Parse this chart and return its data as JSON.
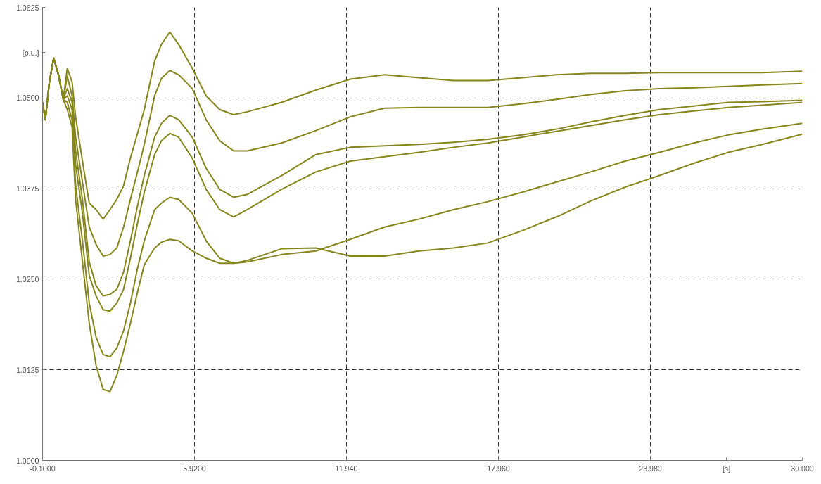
{
  "chart_data": {
    "type": "line",
    "x": [
      -0.1,
      0.01,
      0.17,
      0.34,
      0.53,
      0.72,
      0.88,
      1.07,
      1.21,
      1.48,
      1.75,
      2.02,
      2.3,
      2.57,
      2.84,
      3.11,
      3.38,
      3.66,
      3.93,
      4.34,
      4.61,
      4.94,
      5.29,
      5.83,
      6.38,
      6.92,
      7.47,
      8.01,
      9.37,
      10.73,
      12.09,
      13.45,
      14.82,
      16.18,
      17.54,
      18.9,
      20.26,
      21.62,
      22.98,
      24.34,
      25.7,
      27.06,
      28.42,
      30.0
    ],
    "series": [
      {
        "color": "#86861c",
        "values": [
          1.0494,
          1.047,
          1.0522,
          1.0555,
          1.0532,
          1.0498,
          1.0541,
          1.0522,
          1.0474,
          1.0413,
          1.0355,
          1.0346,
          1.0333,
          1.0346,
          1.036,
          1.0379,
          1.0417,
          1.0451,
          1.0484,
          1.0551,
          1.0574,
          1.0591,
          1.0574,
          1.0541,
          1.0503,
          1.0484,
          1.0477,
          1.0481,
          1.0494,
          1.0511,
          1.0526,
          1.0532,
          1.0528,
          1.0524,
          1.0524,
          1.0528,
          1.0532,
          1.0534,
          1.0534,
          1.0535,
          1.0535,
          1.0535,
          1.0535,
          1.0537
        ]
      },
      {
        "color": "#86861c",
        "values": [
          1.0494,
          1.047,
          1.0522,
          1.0555,
          1.0532,
          1.0498,
          1.053,
          1.0503,
          1.0446,
          1.0384,
          1.0322,
          1.0298,
          1.0282,
          1.0284,
          1.0293,
          1.0322,
          1.036,
          1.0398,
          1.0436,
          1.0503,
          1.0527,
          1.0538,
          1.0532,
          1.0513,
          1.047,
          1.0441,
          1.0427,
          1.0427,
          1.0438,
          1.0455,
          1.0474,
          1.0486,
          1.0487,
          1.0487,
          1.0487,
          1.0492,
          1.0498,
          1.0505,
          1.051,
          1.0513,
          1.0514,
          1.0516,
          1.0518,
          1.052
        ]
      },
      {
        "color": "#86861c",
        "values": [
          1.0494,
          1.047,
          1.0522,
          1.0555,
          1.0532,
          1.0498,
          1.0513,
          1.0494,
          1.0427,
          1.036,
          1.0274,
          1.0241,
          1.0227,
          1.0229,
          1.0236,
          1.026,
          1.0303,
          1.0351,
          1.0393,
          1.0446,
          1.0465,
          1.0476,
          1.047,
          1.0446,
          1.0403,
          1.0374,
          1.0363,
          1.0367,
          1.0393,
          1.0422,
          1.0432,
          1.0434,
          1.0436,
          1.0439,
          1.0443,
          1.0449,
          1.0457,
          1.0467,
          1.0476,
          1.0484,
          1.0489,
          1.0494,
          1.0495,
          1.0497
        ]
      },
      {
        "color": "#86861c",
        "values": [
          1.0494,
          1.047,
          1.0522,
          1.0555,
          1.0532,
          1.0498,
          1.0503,
          1.0484,
          1.0408,
          1.0341,
          1.0255,
          1.0227,
          1.0208,
          1.0206,
          1.0217,
          1.0236,
          1.0279,
          1.0327,
          1.037,
          1.0422,
          1.0441,
          1.0451,
          1.0446,
          1.0417,
          1.0374,
          1.0346,
          1.0336,
          1.0346,
          1.0374,
          1.0398,
          1.0413,
          1.0419,
          1.0425,
          1.0432,
          1.0438,
          1.0446,
          1.0454,
          1.0462,
          1.047,
          1.0477,
          1.0482,
          1.0487,
          1.049,
          1.0494
        ]
      },
      {
        "color": "#86861c",
        "values": [
          1.0494,
          1.047,
          1.0522,
          1.0555,
          1.0532,
          1.0498,
          1.0494,
          1.047,
          1.0379,
          1.0303,
          1.0217,
          1.017,
          1.0146,
          1.0143,
          1.0155,
          1.0179,
          1.0217,
          1.0265,
          1.0303,
          1.0346,
          1.0355,
          1.0363,
          1.036,
          1.0341,
          1.0303,
          1.0279,
          1.0272,
          1.0274,
          1.0284,
          1.0289,
          1.0305,
          1.0322,
          1.0333,
          1.0346,
          1.0357,
          1.037,
          1.0384,
          1.0398,
          1.0413,
          1.0425,
          1.0438,
          1.0449,
          1.0457,
          1.0465
        ]
      },
      {
        "color": "#86861c",
        "values": [
          1.0494,
          1.047,
          1.0522,
          1.0555,
          1.0532,
          1.0498,
          1.0484,
          1.046,
          1.036,
          1.0274,
          1.0189,
          1.0131,
          1.0098,
          1.0095,
          1.0117,
          1.0151,
          1.0189,
          1.0232,
          1.027,
          1.0293,
          1.0301,
          1.0305,
          1.0303,
          1.0289,
          1.0279,
          1.0272,
          1.0272,
          1.0276,
          1.0292,
          1.0293,
          1.0282,
          1.0282,
          1.0289,
          1.0293,
          1.03,
          1.0317,
          1.0336,
          1.0358,
          1.0377,
          1.0393,
          1.041,
          1.0425,
          1.0436,
          1.045
        ]
      }
    ],
    "xlim": [
      -0.1,
      30.0
    ],
    "ylim": [
      1.0,
      1.0625
    ],
    "xticks": [
      {
        "value": -0.1,
        "label": "-0.1000"
      },
      {
        "value": 5.92,
        "label": "5.9200"
      },
      {
        "value": 11.94,
        "label": "11.940"
      },
      {
        "value": 17.96,
        "label": "17.960"
      },
      {
        "value": 23.98,
        "label": "23.980"
      },
      {
        "value": 26.99,
        "label": "[s]"
      },
      {
        "value": 30.0,
        "label": "30.000"
      }
    ],
    "yticks": [
      {
        "value": 1.0,
        "label": "1.0000"
      },
      {
        "value": 1.0125,
        "label": "1.0125"
      },
      {
        "value": 1.025,
        "label": "1.0250"
      },
      {
        "value": 1.0375,
        "label": "1.0375"
      },
      {
        "value": 1.05,
        "label": "1.0500"
      },
      {
        "value": 1.05625,
        "label": "[p.u.]"
      },
      {
        "value": 1.0625,
        "label": "1.0625"
      }
    ],
    "grid": true,
    "line_style": "solid",
    "marker": "none"
  }
}
